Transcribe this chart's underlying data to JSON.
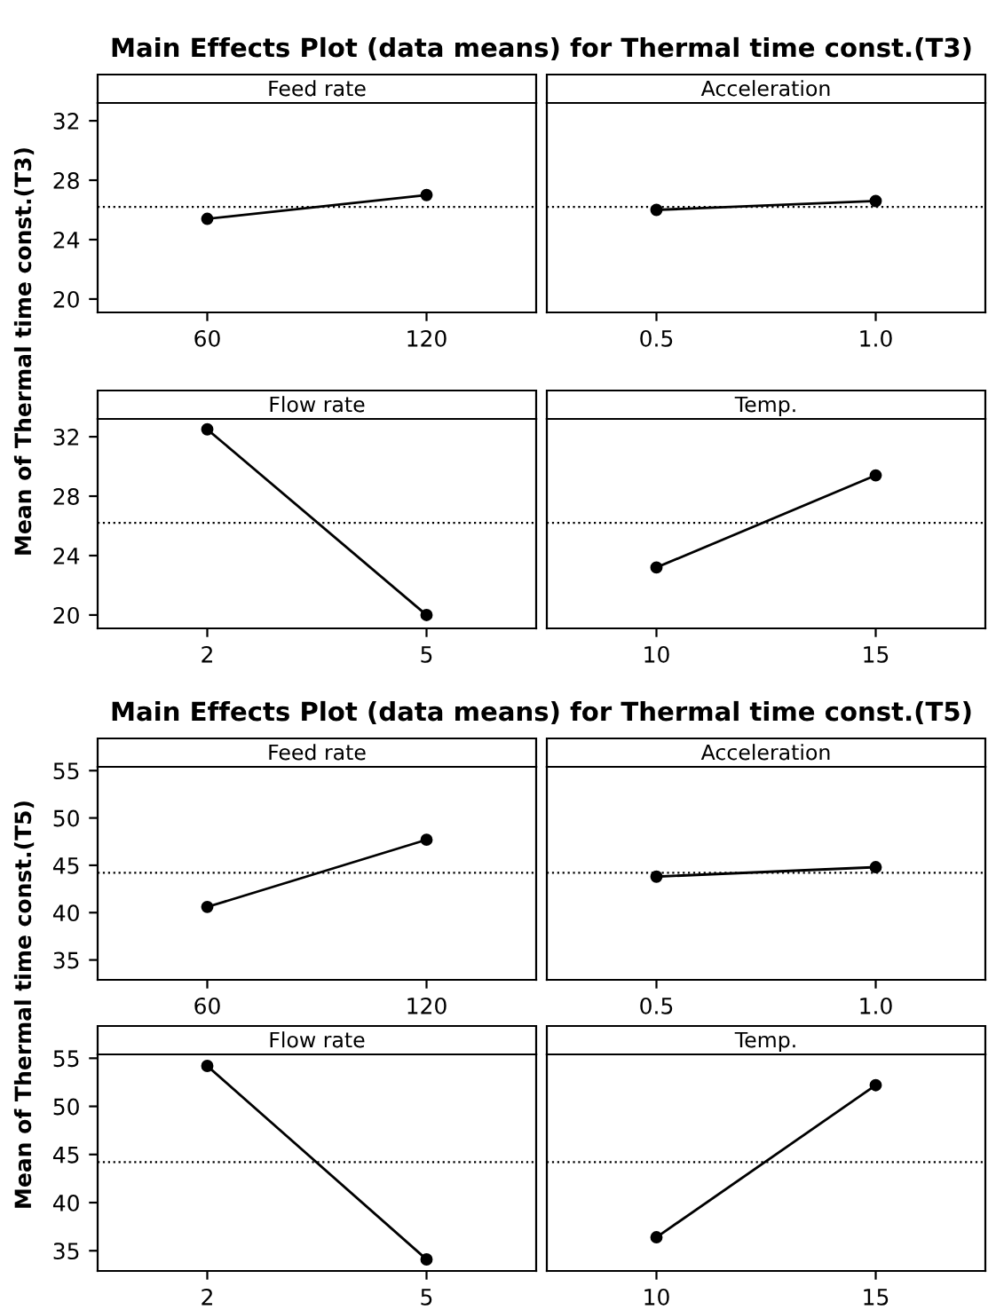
{
  "chart_data": [
    {
      "type": "line",
      "title": "Main Effects Plot (data means) for Thermal time const.(T3)",
      "ylabel": "Mean of Thermal time const.(T3)",
      "subtitle": "Feed rate",
      "categories": [
        "60",
        "120"
      ],
      "series": [
        {
          "color": "#000000",
          "values": [
            25.4,
            27.0
          ]
        }
      ],
      "ylim": [
        19.1,
        33.2
      ],
      "yticks": [
        20,
        24,
        28,
        32
      ],
      "ref_lines": [
        {
          "axis": "y",
          "value": 26.2,
          "line_style": "dotted"
        }
      ],
      "marker": "circle",
      "line_style": "solid",
      "legend": false
    },
    {
      "type": "line",
      "subtitle": "Acceleration",
      "categories": [
        "0.5",
        "1.0"
      ],
      "series": [
        {
          "color": "#000000",
          "values": [
            26.0,
            26.6
          ]
        }
      ],
      "ylim": [
        19.1,
        33.2
      ],
      "yticks": [
        20,
        24,
        28,
        32
      ],
      "ref_lines": [
        {
          "axis": "y",
          "value": 26.2,
          "line_style": "dotted"
        }
      ],
      "marker": "circle",
      "line_style": "solid",
      "legend": false,
      "tick_labels": "x"
    },
    {
      "type": "line",
      "subtitle": "Flow rate",
      "categories": [
        "2",
        "5"
      ],
      "series": [
        {
          "color": "#000000",
          "values": [
            32.5,
            20.0
          ]
        }
      ],
      "ylim": [
        19.1,
        33.2
      ],
      "yticks": [
        20,
        24,
        28,
        32
      ],
      "ref_lines": [
        {
          "axis": "y",
          "value": 26.2,
          "line_style": "dotted"
        }
      ],
      "marker": "circle",
      "line_style": "solid",
      "legend": false
    },
    {
      "type": "line",
      "subtitle": "Temp.",
      "categories": [
        "10",
        "15"
      ],
      "series": [
        {
          "color": "#000000",
          "values": [
            23.2,
            29.4
          ]
        }
      ],
      "ylim": [
        19.1,
        33.2
      ],
      "yticks": [
        20,
        24,
        28,
        32
      ],
      "ref_lines": [
        {
          "axis": "y",
          "value": 26.2,
          "line_style": "dotted"
        }
      ],
      "marker": "circle",
      "line_style": "solid",
      "legend": false,
      "tick_labels": "x"
    },
    {
      "type": "line",
      "title": "Main Effects Plot (data means) for Thermal time const.(T5)",
      "ylabel": "Mean of Thermal time const.(T5)",
      "subtitle": "Feed rate",
      "categories": [
        "60",
        "120"
      ],
      "series": [
        {
          "color": "#000000",
          "values": [
            40.6,
            47.7
          ]
        }
      ],
      "ylim": [
        32.9,
        55.4
      ],
      "yticks": [
        35,
        40,
        45,
        50,
        55
      ],
      "ref_lines": [
        {
          "axis": "y",
          "value": 44.2,
          "line_style": "dotted"
        }
      ],
      "marker": "circle",
      "line_style": "solid",
      "legend": false
    },
    {
      "type": "line",
      "subtitle": "Acceleration",
      "categories": [
        "0.5",
        "1.0"
      ],
      "series": [
        {
          "color": "#000000",
          "values": [
            43.8,
            44.8
          ]
        }
      ],
      "ylim": [
        32.9,
        55.4
      ],
      "yticks": [
        35,
        40,
        45,
        50,
        55
      ],
      "ref_lines": [
        {
          "axis": "y",
          "value": 44.2,
          "line_style": "dotted"
        }
      ],
      "marker": "circle",
      "line_style": "solid",
      "legend": false,
      "tick_labels": "x"
    },
    {
      "type": "line",
      "subtitle": "Flow rate",
      "categories": [
        "2",
        "5"
      ],
      "series": [
        {
          "color": "#000000",
          "values": [
            54.2,
            34.1
          ]
        }
      ],
      "ylim": [
        32.9,
        55.4
      ],
      "yticks": [
        35,
        40,
        45,
        50,
        55
      ],
      "ref_lines": [
        {
          "axis": "y",
          "value": 44.2,
          "line_style": "dotted"
        }
      ],
      "marker": "circle",
      "line_style": "solid",
      "legend": false
    },
    {
      "type": "line",
      "subtitle": "Temp.",
      "categories": [
        "10",
        "15"
      ],
      "series": [
        {
          "color": "#000000",
          "values": [
            36.4,
            52.2
          ]
        }
      ],
      "ylim": [
        32.9,
        55.4
      ],
      "yticks": [
        35,
        40,
        45,
        50,
        55
      ],
      "ref_lines": [
        {
          "axis": "y",
          "value": 44.2,
          "line_style": "dotted"
        }
      ],
      "marker": "circle",
      "line_style": "solid",
      "legend": false,
      "tick_labels": "x"
    }
  ]
}
